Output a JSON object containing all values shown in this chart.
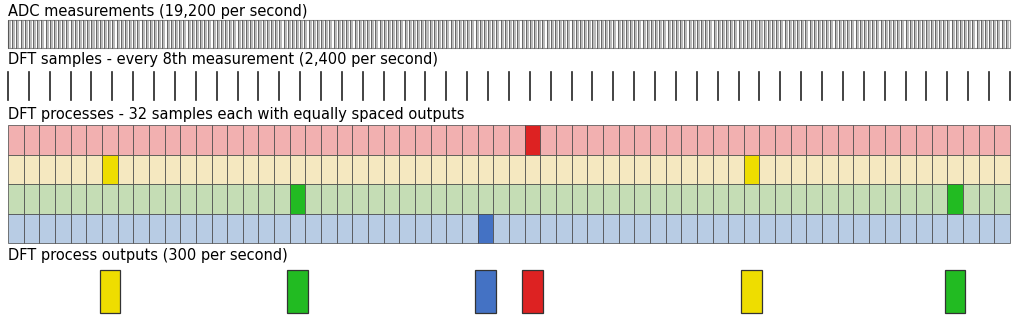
{
  "title_adc": "ADC measurements (19,200 per second)",
  "title_dft_samples": "DFT samples - every 8th measurement (2,400 per second)",
  "title_dft_processes": "DFT processes - 32 samples each with equally spaced outputs",
  "title_dft_outputs": "DFT process outputs (300 per second)",
  "n_cells": 64,
  "n_rows": 4,
  "row_colors": [
    "#f2b0b0",
    "#f5e8c0",
    "#c5ddb5",
    "#b8cce4"
  ],
  "row_highlight_cells": [
    {
      "row": 0,
      "col": 33,
      "color": "#dd2222"
    },
    {
      "row": 1,
      "col": 6,
      "color": "#eedd00"
    },
    {
      "row": 1,
      "col": 47,
      "color": "#eedd00"
    },
    {
      "row": 2,
      "col": 18,
      "color": "#22bb22"
    },
    {
      "row": 2,
      "col": 60,
      "color": "#22bb22"
    },
    {
      "row": 3,
      "col": 30,
      "color": "#4472c4"
    }
  ],
  "output_boxes": [
    {
      "col": 6,
      "color": "#eedd00"
    },
    {
      "col": 18,
      "color": "#22bb22"
    },
    {
      "col": 30,
      "color": "#4472c4"
    },
    {
      "col": 33,
      "color": "#dd2222"
    },
    {
      "col": 47,
      "color": "#eedd00"
    },
    {
      "col": 60,
      "color": "#22bb22"
    }
  ],
  "adc_face_color": "#bbbbbb",
  "adc_dark_color": "#444444",
  "n_adc_bars": 240,
  "tick_color": "#222222",
  "n_ticks": 48,
  "grid_edge_color": "#444444",
  "background": "#ffffff",
  "font_size_label": 10.5
}
